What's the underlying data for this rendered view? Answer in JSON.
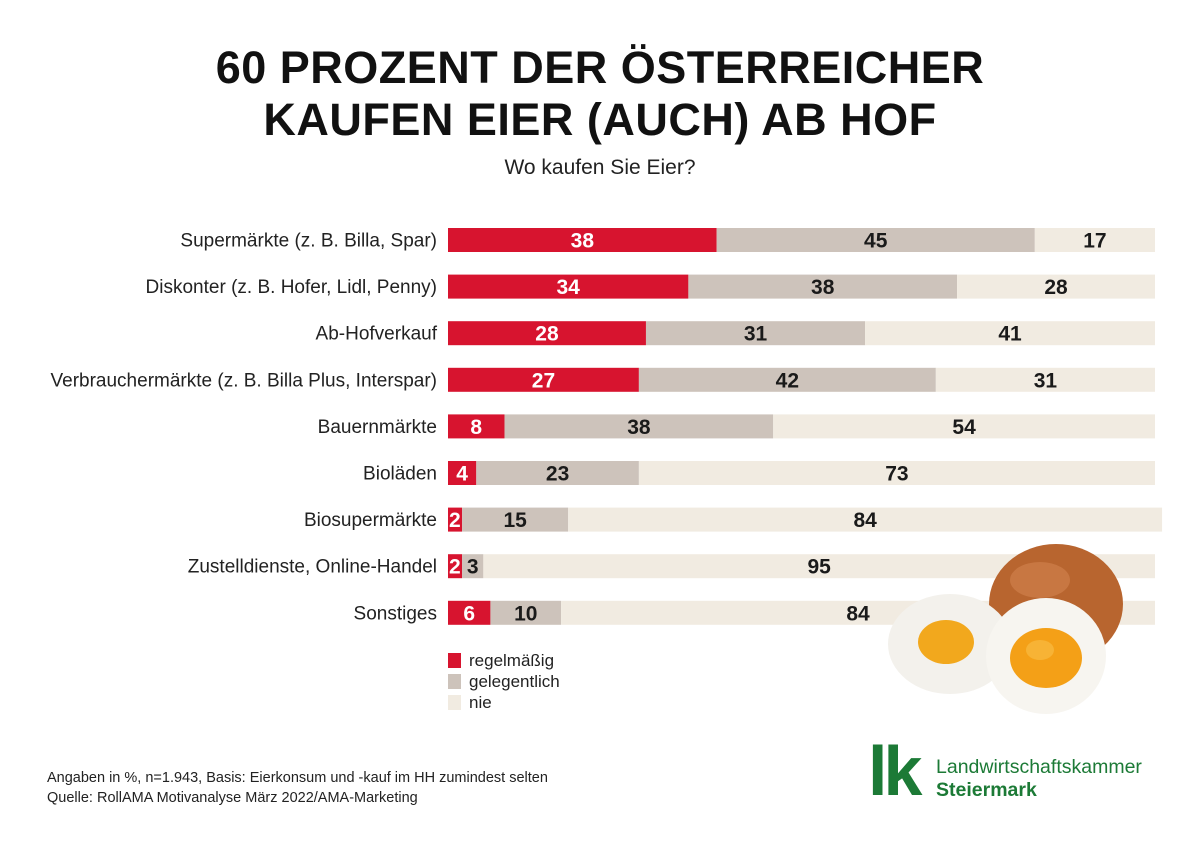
{
  "title_line1": "60 PROZENT DER ÖSTERREICHER",
  "title_line2": "KAUFEN EIER (AUCH) AB HOF",
  "subtitle": "Wo kaufen Sie Eier?",
  "colors": {
    "regelmaessig": "#d7142f",
    "gelegentlich": "#cdc3bb",
    "nie": "#f1ebe1"
  },
  "chart_data": {
    "type": "bar",
    "orientation": "horizontal-stacked-100",
    "title": "60 PROZENT DER ÖSTERREICHER KAUFEN EIER (AUCH) AB HOF",
    "subtitle": "Wo kaufen Sie Eier?",
    "categories": [
      "Supermärkte (z. B. Billa, Spar)",
      "Diskonter (z. B. Hofer, Lidl, Penny)",
      "Ab-Hofverkauf",
      "Verbrauchermärkte (z. B. Billa Plus, Interspar)",
      "Bauernmärkte",
      "Bioläden",
      "Biosupermärkte",
      "Zustelldienste, Online-Handel",
      "Sonstiges"
    ],
    "series": [
      {
        "name": "regelmäßig",
        "color": "#d7142f",
        "values": [
          38,
          34,
          28,
          27,
          8,
          4,
          2,
          2,
          6
        ]
      },
      {
        "name": "gelegentlich",
        "color": "#cdc3bb",
        "values": [
          45,
          38,
          31,
          42,
          38,
          23,
          15,
          3,
          10
        ]
      },
      {
        "name": "nie",
        "color": "#f1ebe1",
        "values": [
          17,
          28,
          41,
          31,
          54,
          73,
          84,
          95,
          84
        ]
      }
    ],
    "xlim": [
      0,
      100
    ],
    "legend_position": "bottom-left",
    "grid": false
  },
  "footnote_line1": "Angaben in %, n=1.943, Basis: Eierkonsum und -kauf im HH zumindest selten",
  "footnote_line2": "Quelle: RollAMA Motivanalyse März 2022/AMA-Marketing",
  "logo": {
    "mark": "lk",
    "line1": "Landwirtschaftskammer",
    "line2": "Steiermark"
  },
  "illustration_icon": "boiled-eggs-image"
}
